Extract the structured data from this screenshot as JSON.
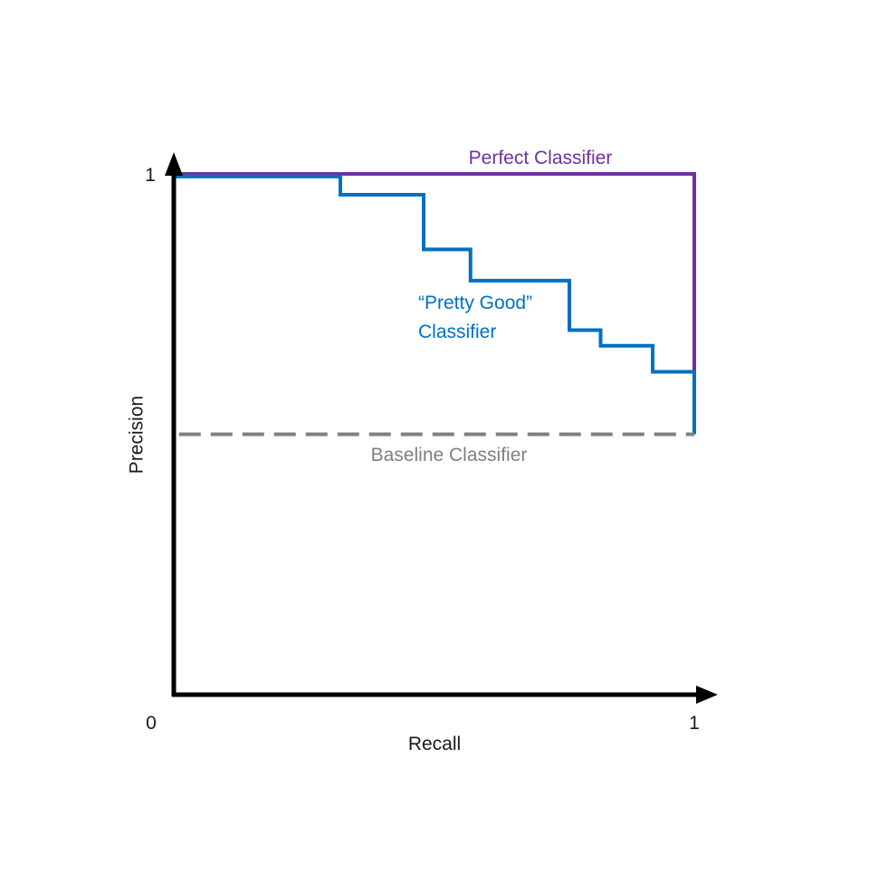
{
  "chart_data": {
    "type": "line",
    "xlabel": "Recall",
    "ylabel": "Precision",
    "xlim": [
      0,
      1
    ],
    "ylim": [
      0,
      1
    ],
    "grid": false,
    "x_ticks": [
      {
        "value": 0,
        "label": "0"
      },
      {
        "value": 1,
        "label": "1"
      }
    ],
    "y_ticks": [
      {
        "value": 1,
        "label": "1"
      }
    ],
    "series": [
      {
        "name": "Perfect Classifier",
        "color": "#7030a0",
        "style": "solid",
        "step": true,
        "x": [
          0,
          1,
          1
        ],
        "y": [
          1,
          1,
          0.5
        ]
      },
      {
        "name": "“Pretty Good” Classifier",
        "label_lines": [
          "“Pretty Good”",
          "Classifier"
        ],
        "color": "#0070c0",
        "style": "solid",
        "step": true,
        "x": [
          0,
          0.32,
          0.48,
          0.57,
          0.76,
          0.82,
          0.92,
          1.0,
          1.0
        ],
        "y": [
          0.995,
          0.96,
          0.855,
          0.795,
          0.7,
          0.67,
          0.62,
          0.62,
          0.5
        ]
      },
      {
        "name": "Baseline Classifier",
        "color": "#7f7f7f",
        "style": "dashed",
        "x": [
          0.01,
          1
        ],
        "y": [
          0.5,
          0.5
        ]
      }
    ]
  }
}
